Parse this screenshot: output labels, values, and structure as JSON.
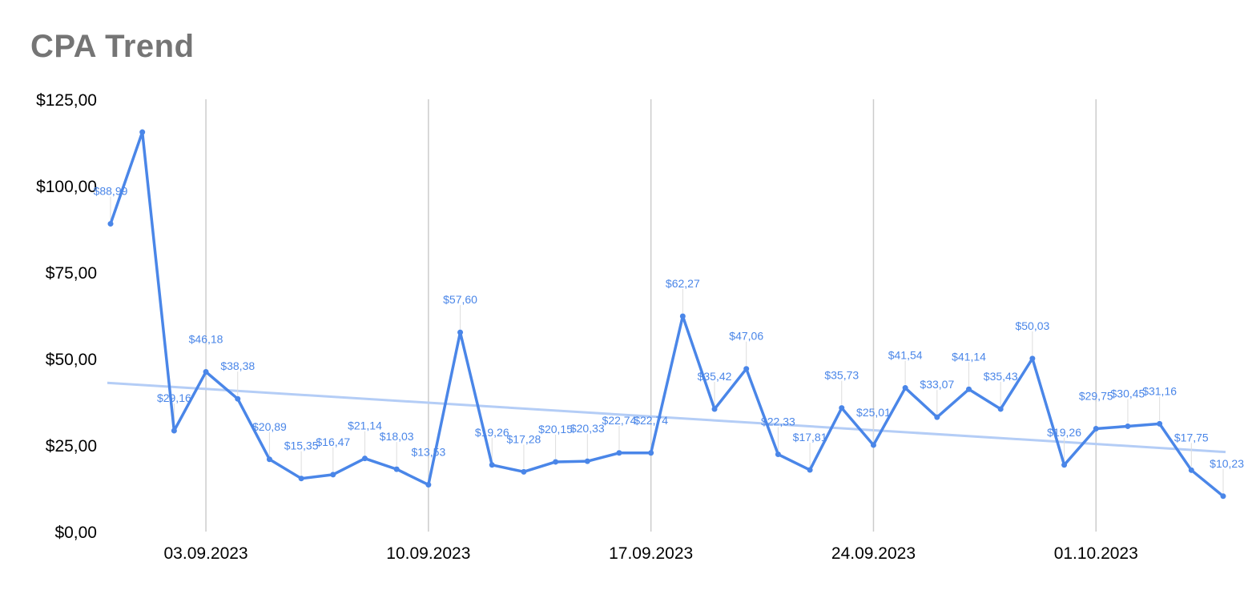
{
  "chart_data": {
    "type": "line",
    "title": "CPA Trend",
    "xlabel": "",
    "ylabel": "",
    "ylim": [
      0,
      125
    ],
    "y_ticks": [
      "$0,00",
      "$25,00",
      "$50,00",
      "$75,00",
      "$100,00",
      "$125,00"
    ],
    "y_tick_values": [
      0,
      25,
      50,
      75,
      100,
      125
    ],
    "x_ticks": [
      "03.09.2023",
      "10.09.2023",
      "17.09.2023",
      "24.09.2023",
      "01.10.2023"
    ],
    "x_tick_indices": [
      3,
      10,
      17,
      24,
      31
    ],
    "x": [
      "31.08.2023",
      "01.09.2023",
      "02.09.2023",
      "03.09.2023",
      "04.09.2023",
      "05.09.2023",
      "06.09.2023",
      "07.09.2023",
      "08.09.2023",
      "09.09.2023",
      "10.09.2023",
      "11.09.2023",
      "12.09.2023",
      "13.09.2023",
      "14.09.2023",
      "15.09.2023",
      "16.09.2023",
      "17.09.2023",
      "18.09.2023",
      "19.09.2023",
      "20.09.2023",
      "21.09.2023",
      "22.09.2023",
      "23.09.2023",
      "24.09.2023",
      "25.09.2023",
      "26.09.2023",
      "27.09.2023",
      "28.09.2023",
      "29.09.2023",
      "30.09.2023",
      "01.10.2023",
      "02.10.2023",
      "03.10.2023",
      "04.10.2023",
      "05.10.2023"
    ],
    "values": [
      88.99,
      115.5,
      29.16,
      46.18,
      38.38,
      20.89,
      15.35,
      16.47,
      21.14,
      18.03,
      13.53,
      57.6,
      19.26,
      17.28,
      20.15,
      20.33,
      22.74,
      22.74,
      62.27,
      35.42,
      47.06,
      22.33,
      17.81,
      35.73,
      25.01,
      41.54,
      33.07,
      41.14,
      35.43,
      50.03,
      19.26,
      29.75,
      30.45,
      31.16,
      17.75,
      10.23
    ],
    "data_labels": [
      "$88,99",
      "",
      "$29,16",
      "$46,18",
      "$38,38",
      "$20,89",
      "$15,35",
      "$16,47",
      "$21,14",
      "$18,03",
      "$13,53",
      "$57,60",
      "$19,26",
      "$17,28",
      "$20,15",
      "$20,33",
      "$22,74",
      "$22,74",
      "$62,27",
      "$35,42",
      "$47,06",
      "$22,33",
      "$17,81",
      "$35,73",
      "$25,01",
      "$41,54",
      "$33,07",
      "$41,14",
      "$35,43",
      "$50,03",
      "$19,26",
      "$29,75",
      "$30,45",
      "$31,16",
      "$17,75",
      "$10,23"
    ],
    "trendline": {
      "type": "linear",
      "start": 43.0,
      "end": 23.0
    },
    "grid": "vertical-at-x-ticks",
    "legend": "none",
    "colors": {
      "series": "#4a86e8",
      "trendline": "#b4cdf6",
      "label": "#4a86e8",
      "grid": "#cccccc",
      "leader": "#dddddd"
    }
  }
}
